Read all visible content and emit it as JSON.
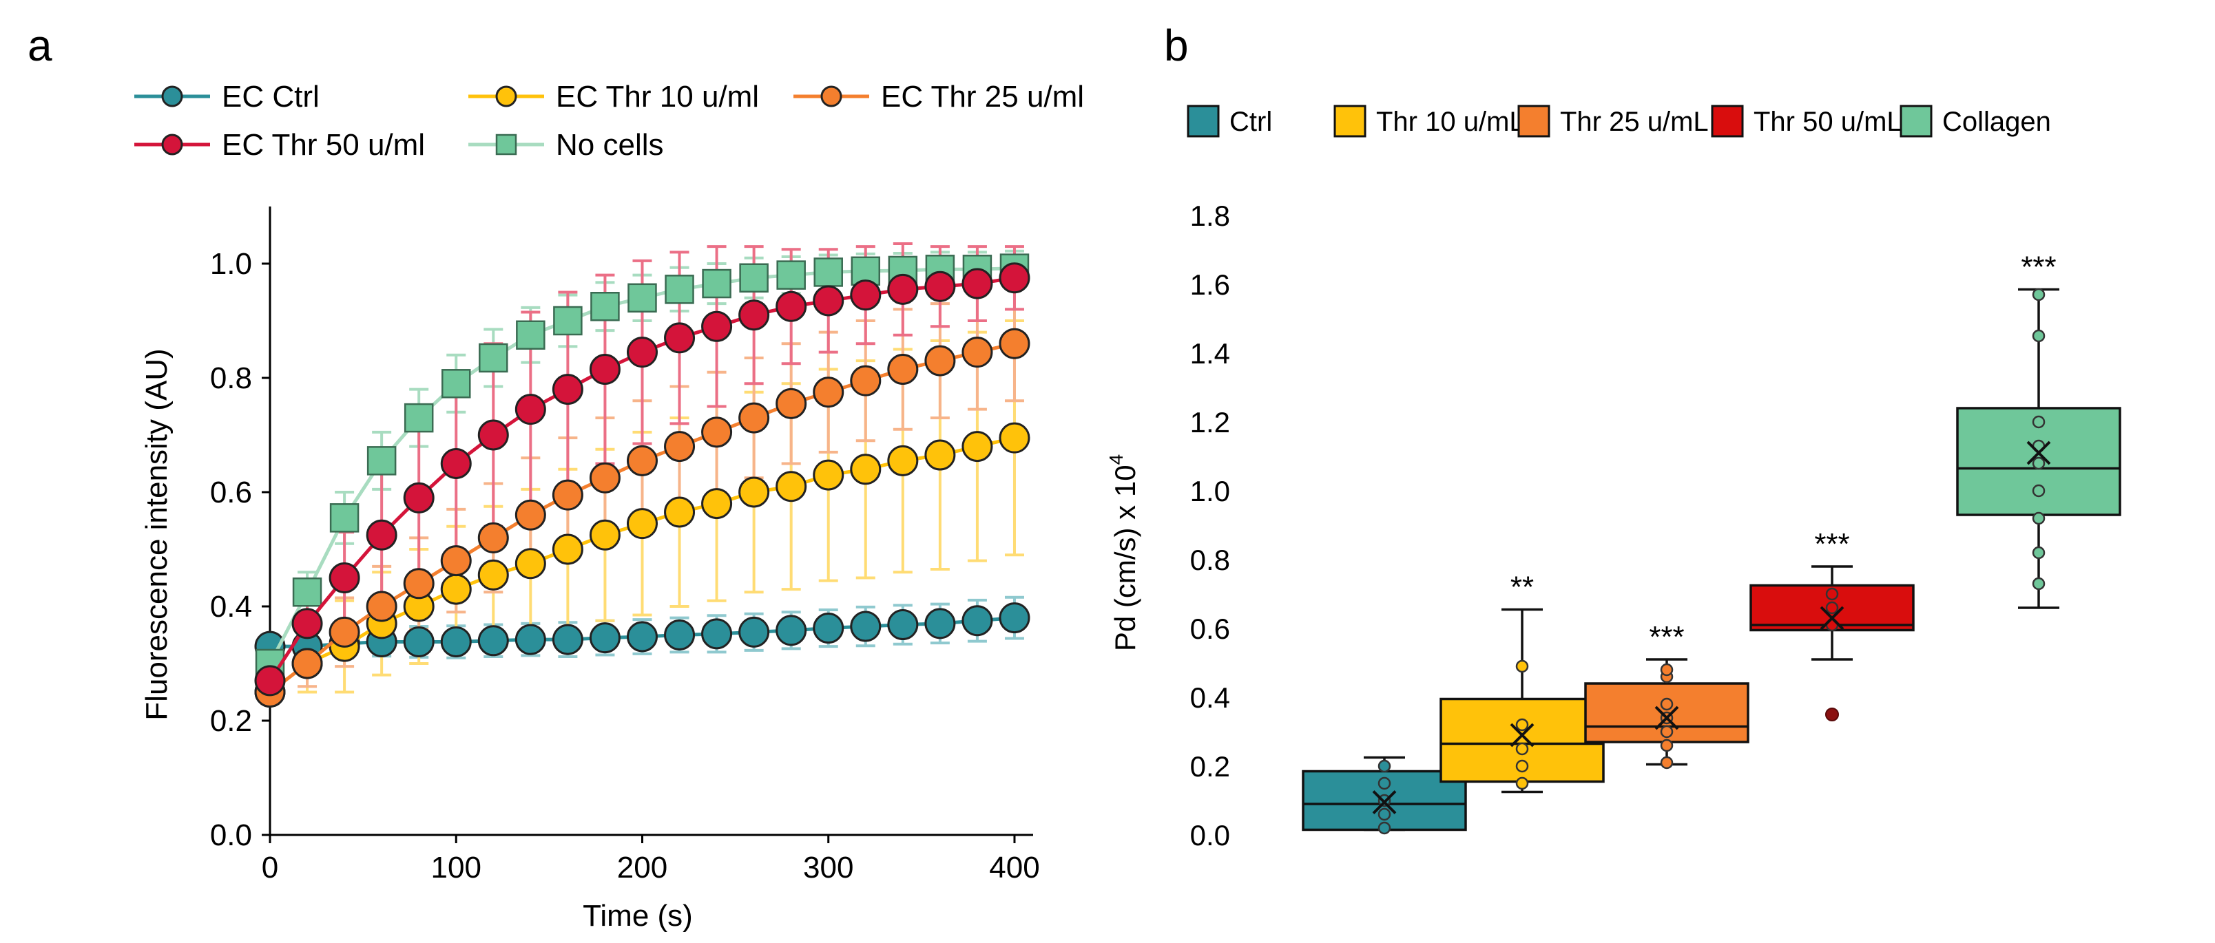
{
  "panel_labels": {
    "a": "a",
    "b": "b"
  },
  "colors": {
    "ctrl": "#2b8f99",
    "thr10": "#ffc20a",
    "thr25": "#f47f2e",
    "thr50": "#d4143a",
    "thr50_box": "#d90d0d",
    "nocells": "#6fc79a",
    "collagen": "#6fc79a",
    "ctrl_err": "#8fc9cf",
    "thr10_err": "#ffdc74",
    "thr25_err": "#f7b48a",
    "thr50_err": "#eb6f86",
    "nocells_err": "#a8dcc0"
  },
  "chart_data": [
    {
      "type": "line",
      "panel": "a",
      "xlabel": "Time (s)",
      "ylabel": "Fluorescence intensity (AU)",
      "xlim": [
        0,
        410
      ],
      "ylim": [
        0,
        1.1
      ],
      "x_ticks": [
        "0",
        "100",
        "200",
        "300",
        "400"
      ],
      "y_ticks": [
        "0.0",
        "0.2",
        "0.4",
        "0.6",
        "0.8",
        "1.0"
      ],
      "x": [
        0,
        20,
        40,
        60,
        80,
        100,
        120,
        140,
        160,
        180,
        200,
        220,
        240,
        260,
        280,
        300,
        320,
        340,
        360,
        380,
        400
      ],
      "series": [
        {
          "key": "ctrl",
          "name": "EC Ctrl",
          "marker": "circle",
          "values": [
            0.33,
            0.33,
            0.335,
            0.338,
            0.338,
            0.338,
            0.34,
            0.342,
            0.342,
            0.345,
            0.347,
            0.35,
            0.352,
            0.355,
            0.358,
            0.362,
            0.365,
            0.368,
            0.37,
            0.375,
            0.38
          ],
          "err": [
            0.02,
            0.02,
            0.025,
            0.025,
            0.027,
            0.028,
            0.028,
            0.028,
            0.03,
            0.03,
            0.03,
            0.03,
            0.032,
            0.032,
            0.032,
            0.032,
            0.034,
            0.034,
            0.034,
            0.036,
            0.036
          ]
        },
        {
          "key": "thr10",
          "name": "EC Thr 10 u/ml",
          "marker": "circle",
          "values": [
            0.25,
            0.3,
            0.33,
            0.37,
            0.4,
            0.43,
            0.455,
            0.475,
            0.5,
            0.525,
            0.545,
            0.565,
            0.58,
            0.6,
            0.61,
            0.63,
            0.64,
            0.655,
            0.665,
            0.68,
            0.695
          ],
          "err": [
            0.02,
            0.05,
            0.08,
            0.09,
            0.1,
            0.11,
            0.12,
            0.13,
            0.14,
            0.15,
            0.16,
            0.165,
            0.17,
            0.175,
            0.18,
            0.185,
            0.19,
            0.195,
            0.2,
            0.2,
            0.205
          ]
        },
        {
          "key": "thr25",
          "name": "EC Thr 25 u/ml",
          "marker": "circle",
          "values": [
            0.25,
            0.3,
            0.355,
            0.4,
            0.44,
            0.48,
            0.52,
            0.56,
            0.595,
            0.625,
            0.655,
            0.68,
            0.705,
            0.73,
            0.755,
            0.775,
            0.795,
            0.815,
            0.83,
            0.845,
            0.86
          ],
          "err": [
            0.02,
            0.04,
            0.06,
            0.07,
            0.08,
            0.09,
            0.095,
            0.1,
            0.1,
            0.105,
            0.105,
            0.105,
            0.105,
            0.105,
            0.105,
            0.105,
            0.105,
            0.105,
            0.1,
            0.1,
            0.1
          ]
        },
        {
          "key": "thr50",
          "name": "EC Thr 50 u/ml",
          "marker": "circle",
          "values": [
            0.27,
            0.37,
            0.45,
            0.525,
            0.59,
            0.65,
            0.7,
            0.745,
            0.78,
            0.815,
            0.845,
            0.87,
            0.89,
            0.91,
            0.925,
            0.935,
            0.945,
            0.955,
            0.96,
            0.965,
            0.975
          ],
          "err": [
            0.02,
            0.05,
            0.08,
            0.11,
            0.13,
            0.15,
            0.16,
            0.17,
            0.17,
            0.165,
            0.16,
            0.15,
            0.14,
            0.12,
            0.1,
            0.09,
            0.085,
            0.08,
            0.07,
            0.065,
            0.055
          ]
        },
        {
          "key": "nocells",
          "name": "No cells",
          "marker": "square",
          "values": [
            0.3,
            0.425,
            0.555,
            0.655,
            0.73,
            0.79,
            0.835,
            0.875,
            0.9,
            0.925,
            0.94,
            0.955,
            0.965,
            0.975,
            0.98,
            0.985,
            0.987,
            0.988,
            0.99,
            0.99,
            0.992
          ],
          "err": [
            0.02,
            0.035,
            0.045,
            0.05,
            0.05,
            0.05,
            0.05,
            0.048,
            0.045,
            0.042,
            0.04,
            0.038,
            0.035,
            0.035,
            0.032,
            0.03,
            0.03,
            0.03,
            0.03,
            0.03,
            0.03
          ]
        }
      ]
    },
    {
      "type": "box",
      "panel": "b",
      "ylabel": "Pd (cm/s) x 10",
      "ylabel_sup": "4",
      "ylim": [
        0,
        1.8
      ],
      "y_ticks": [
        "0.0",
        "0.2",
        "0.4",
        "0.6",
        "0.8",
        "1.0",
        "1.2",
        "1.4",
        "1.6",
        "1.8"
      ],
      "categories": [
        "Ctrl",
        "Thr 10 u/mL",
        "Thr 25 u/mL",
        "Thr 50 u/mL",
        "Collagen"
      ],
      "boxes": [
        {
          "key": "ctrl",
          "min": 0.015,
          "q1": 0.015,
          "median": 0.09,
          "q3": 0.185,
          "max": 0.225,
          "mean": 0.095,
          "points": [
            0.02,
            0.06,
            0.1,
            0.15,
            0.2
          ],
          "outliers": [],
          "sig": ""
        },
        {
          "key": "thr10",
          "min": 0.125,
          "q1": 0.155,
          "median": 0.265,
          "q3": 0.395,
          "max": 0.655,
          "mean": 0.29,
          "points": [
            0.15,
            0.2,
            0.25,
            0.32,
            0.49
          ],
          "outliers": [],
          "sig": "**"
        },
        {
          "key": "thr25",
          "min": 0.205,
          "q1": 0.27,
          "median": 0.315,
          "q3": 0.44,
          "max": 0.51,
          "mean": 0.34,
          "points": [
            0.21,
            0.26,
            0.3,
            0.34,
            0.38,
            0.46,
            0.48
          ],
          "outliers": [],
          "sig": "***"
        },
        {
          "key": "thr50",
          "min": 0.51,
          "q1": 0.595,
          "median": 0.61,
          "q3": 0.725,
          "max": 0.78,
          "mean": 0.63,
          "points": [
            0.61,
            0.66,
            0.7
          ],
          "outliers": [
            0.35
          ],
          "sig": "***"
        },
        {
          "key": "collagen",
          "min": 0.66,
          "q1": 0.93,
          "median": 1.065,
          "q3": 1.24,
          "max": 1.585,
          "mean": 1.11,
          "points": [
            0.73,
            0.82,
            0.92,
            1.0,
            1.08,
            1.13,
            1.2,
            1.45,
            1.57
          ],
          "outliers": [],
          "sig": "***"
        }
      ]
    }
  ]
}
